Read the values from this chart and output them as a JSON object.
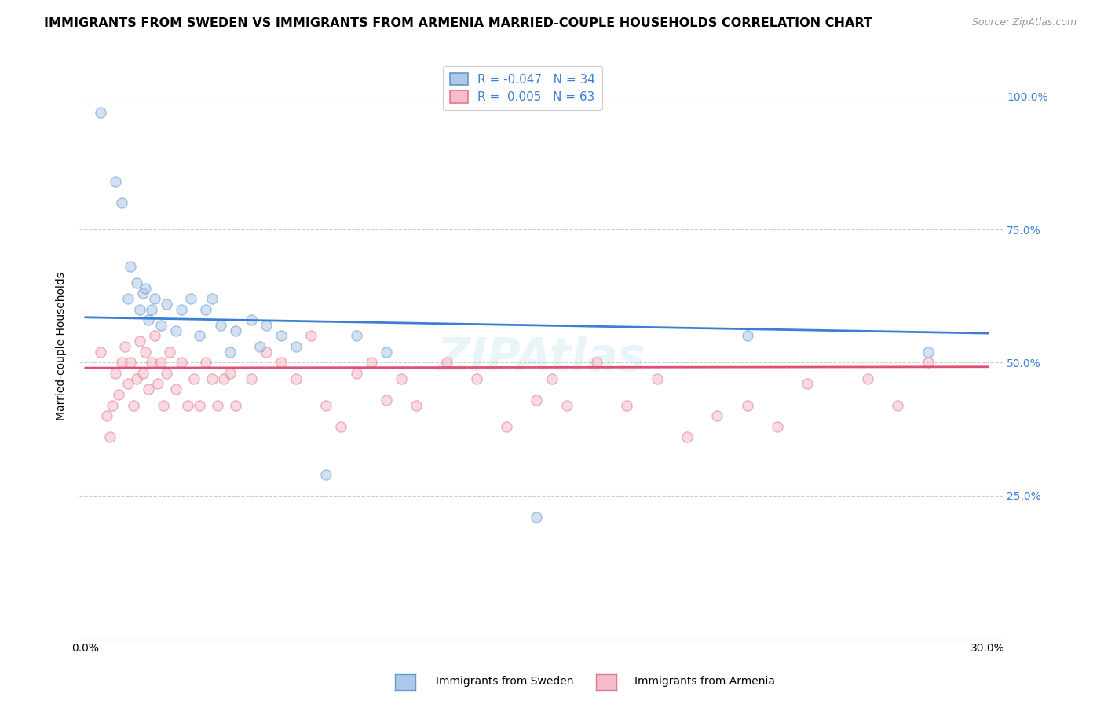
{
  "title": "IMMIGRANTS FROM SWEDEN VS IMMIGRANTS FROM ARMENIA MARRIED-COUPLE HOUSEHOLDS CORRELATION CHART",
  "source": "Source: ZipAtlas.com",
  "ylabel": "Married-couple Households",
  "xlim": [
    -0.002,
    0.305
  ],
  "ylim": [
    -0.02,
    1.08
  ],
  "sweden_color": "#adc8e8",
  "sweden_edge_color": "#6699cc",
  "armenia_color": "#f5bccb",
  "armenia_edge_color": "#e07890",
  "trend_sweden_color": "#3a7fd5",
  "trend_armenia_color": "#e05070",
  "legend_r_sweden": "R = -0.047",
  "legend_n_sweden": "N = 34",
  "legend_r_armenia": "R =  0.005",
  "legend_n_armenia": "N = 63",
  "sweden_x": [
    0.005,
    0.01,
    0.012,
    0.014,
    0.015,
    0.017,
    0.018,
    0.019,
    0.02,
    0.021,
    0.022,
    0.023,
    0.025,
    0.027,
    0.03,
    0.032,
    0.035,
    0.038,
    0.04,
    0.042,
    0.045,
    0.048,
    0.05,
    0.055,
    0.058,
    0.06,
    0.065,
    0.07,
    0.08,
    0.09,
    0.1,
    0.15,
    0.22,
    0.28
  ],
  "sweden_y": [
    0.97,
    0.84,
    0.8,
    0.62,
    0.68,
    0.65,
    0.6,
    0.63,
    0.64,
    0.58,
    0.6,
    0.62,
    0.57,
    0.61,
    0.56,
    0.6,
    0.62,
    0.55,
    0.6,
    0.62,
    0.57,
    0.52,
    0.56,
    0.58,
    0.53,
    0.57,
    0.55,
    0.53,
    0.29,
    0.55,
    0.52,
    0.21,
    0.55,
    0.52
  ],
  "armenia_x": [
    0.005,
    0.007,
    0.008,
    0.009,
    0.01,
    0.011,
    0.012,
    0.013,
    0.014,
    0.015,
    0.016,
    0.017,
    0.018,
    0.019,
    0.02,
    0.021,
    0.022,
    0.023,
    0.024,
    0.025,
    0.026,
    0.027,
    0.028,
    0.03,
    0.032,
    0.034,
    0.036,
    0.038,
    0.04,
    0.042,
    0.044,
    0.046,
    0.048,
    0.05,
    0.055,
    0.06,
    0.065,
    0.07,
    0.075,
    0.08,
    0.085,
    0.09,
    0.095,
    0.1,
    0.105,
    0.11,
    0.12,
    0.13,
    0.14,
    0.15,
    0.155,
    0.16,
    0.17,
    0.18,
    0.19,
    0.2,
    0.21,
    0.22,
    0.23,
    0.24,
    0.26,
    0.27,
    0.28
  ],
  "armenia_y": [
    0.52,
    0.4,
    0.36,
    0.42,
    0.48,
    0.44,
    0.5,
    0.53,
    0.46,
    0.5,
    0.42,
    0.47,
    0.54,
    0.48,
    0.52,
    0.45,
    0.5,
    0.55,
    0.46,
    0.5,
    0.42,
    0.48,
    0.52,
    0.45,
    0.5,
    0.42,
    0.47,
    0.42,
    0.5,
    0.47,
    0.42,
    0.47,
    0.48,
    0.42,
    0.47,
    0.52,
    0.5,
    0.47,
    0.55,
    0.42,
    0.38,
    0.48,
    0.5,
    0.43,
    0.47,
    0.42,
    0.5,
    0.47,
    0.38,
    0.43,
    0.47,
    0.42,
    0.5,
    0.42,
    0.47,
    0.36,
    0.4,
    0.42,
    0.38,
    0.46,
    0.47,
    0.42,
    0.5
  ],
  "background_color": "#ffffff",
  "grid_color": "#cccccc",
  "watermark_text": "ZIPAtlas",
  "title_fontsize": 11.5,
  "axis_label_fontsize": 10,
  "tick_fontsize": 10,
  "marker_size": 90,
  "marker_alpha": 0.55,
  "sweden_trend_x": [
    0.0,
    0.3
  ],
  "sweden_trend_y": [
    0.585,
    0.555
  ],
  "armenia_trend_x": [
    0.0,
    0.3
  ],
  "armenia_trend_y": [
    0.49,
    0.492
  ]
}
